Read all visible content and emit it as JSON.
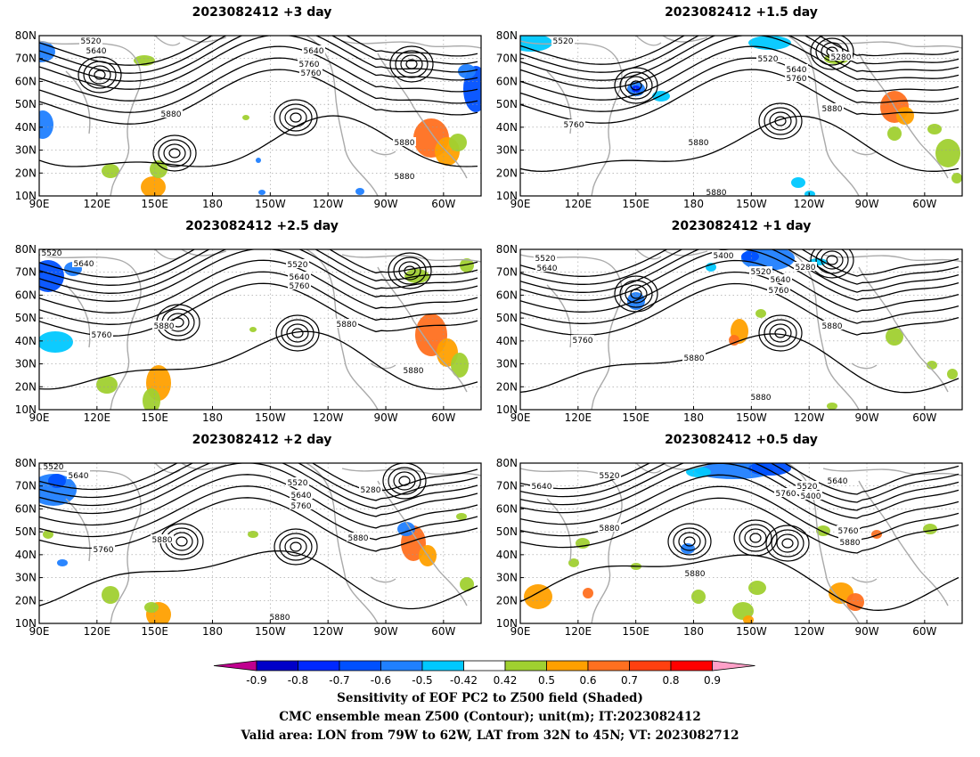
{
  "panels": [
    {
      "title": "2023082412 +3 day",
      "labels": [
        "5520",
        "5640",
        "5640",
        "5760",
        "5760",
        "5880",
        "5880",
        "5880"
      ]
    },
    {
      "title": "2023082412 +1.5 day",
      "labels": [
        "5520",
        "5520",
        "5280",
        "5640",
        "5760",
        "5760",
        "5880",
        "5880",
        "5880"
      ]
    },
    {
      "title": "2023082412 +2.5 day",
      "labels": [
        "5520",
        "5640",
        "5520",
        "5640",
        "5760",
        "5760",
        "5880",
        "5880",
        "5880"
      ]
    },
    {
      "title": "2023082412 +1 day",
      "labels": [
        "5520",
        "5640",
        "5400",
        "5520",
        "5280",
        "5640",
        "5760",
        "5760",
        "5880",
        "5880",
        "5880"
      ]
    },
    {
      "title": "2023082412 +2 day",
      "labels": [
        "5520",
        "5640",
        "5520",
        "5640",
        "5280",
        "5760",
        "5880",
        "5880",
        "5760",
        "5880"
      ]
    },
    {
      "title": "2023082412 +0.5 day",
      "labels": [
        "5640",
        "5520",
        "5520",
        "5400",
        "5640",
        "5760",
        "5760",
        "5880",
        "5880",
        "5880"
      ]
    }
  ],
  "axes": {
    "lat_labels": [
      "80N",
      "70N",
      "60N",
      "50N",
      "40N",
      "30N",
      "20N",
      "10N"
    ],
    "lon_labels": [
      "90E",
      "120E",
      "150E",
      "180",
      "150W",
      "120W",
      "90W",
      "60W"
    ]
  },
  "colorbar": {
    "labels": [
      "-0.9",
      "-0.8",
      "-0.7",
      "-0.6",
      "-0.5",
      "-0.42",
      "0.42",
      "0.5",
      "0.6",
      "0.7",
      "0.8",
      "0.9"
    ],
    "colors": [
      "#c0008f",
      "#0000c8",
      "#0028ff",
      "#0050ff",
      "#2080ff",
      "#00c8ff",
      "#ffffff",
      "#a0d030",
      "#ffa000",
      "#ff7020",
      "#ff4010",
      "#ff0000",
      "#ffa0c8"
    ]
  },
  "caption": {
    "line1": "Sensitivity of EOF PC2 to Z500 field (Shaded)",
    "line2": "CMC ensemble mean Z500 (Contour); unit(m); IT:2023082412",
    "line3": "Valid area: LON from 79W to 62W, LAT from 32N to 45N; VT: 2023082712"
  }
}
